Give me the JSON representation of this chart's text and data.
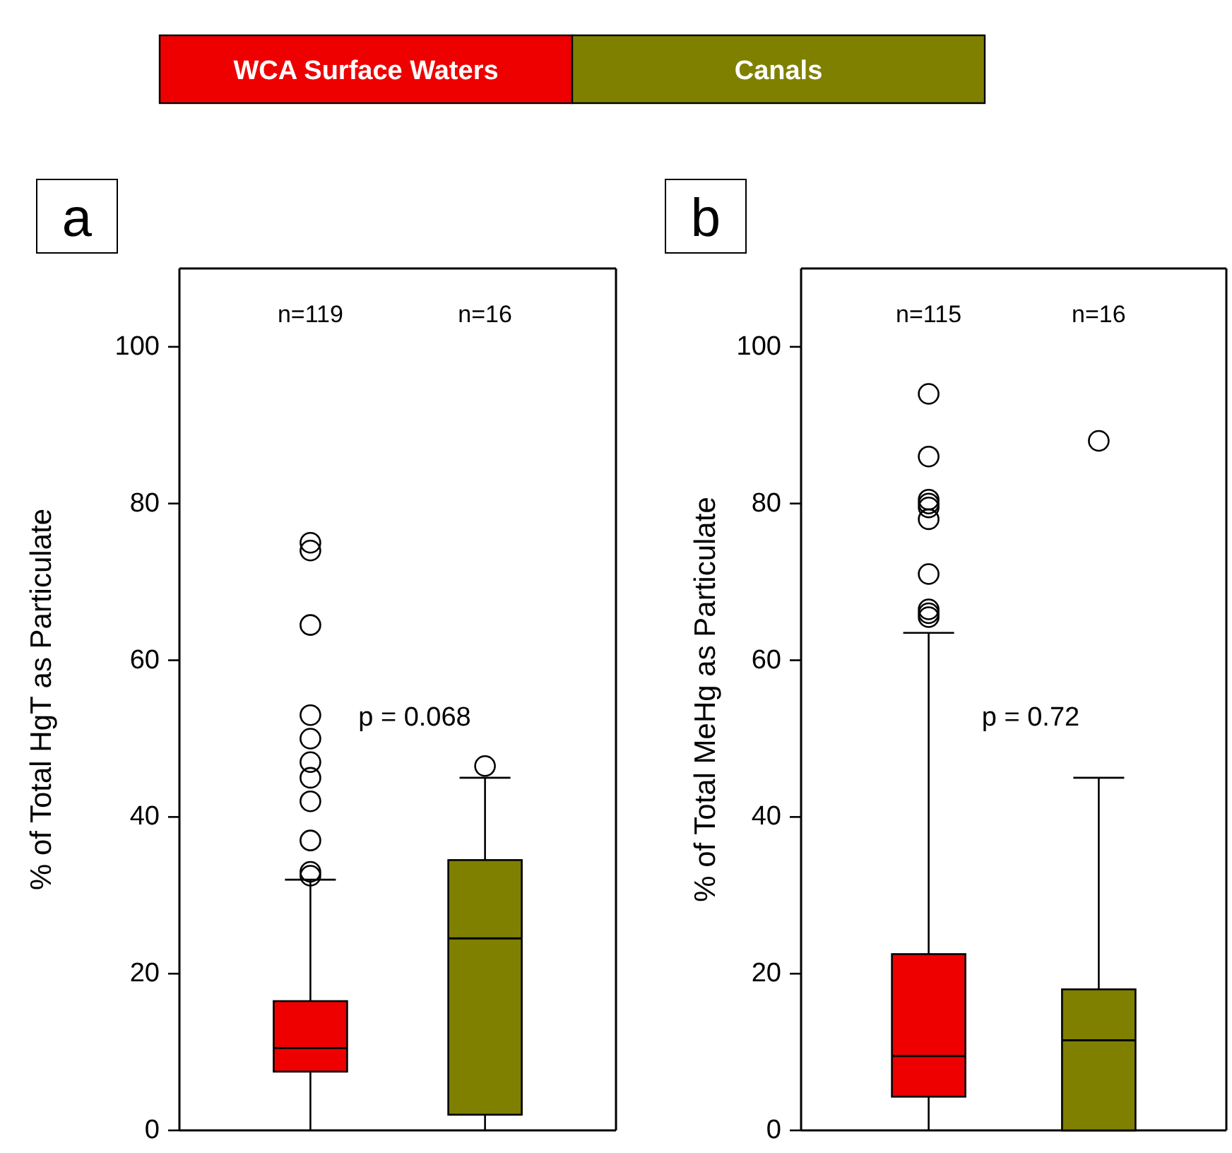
{
  "chart_data": [
    {
      "type": "other",
      "categories": [
        "WCA Surface Waters",
        "Canals"
      ],
      "colors": [
        "#ee0000",
        "#808000"
      ]
    },
    {
      "type": "box",
      "title": "a",
      "ylabel": "% of Total HgT as Particulate",
      "categories": [
        null,
        null
      ],
      "ylim": [
        0,
        110
      ],
      "yticks": [
        0,
        20,
        40,
        60,
        80,
        100
      ],
      "annotations": [
        "n=119",
        "n=16",
        "p = 0.068"
      ],
      "series": [
        {
          "colors": [
            "#ee0000",
            "#808000"
          ],
          "boxes": [
            {
              "low": 0,
              "q1": 7.5,
              "median": 10.5,
              "q3": 16.5,
              "high": 32,
              "outliers": [
                75,
                74,
                64.5,
                53,
                50,
                47,
                45,
                42,
                37,
                33,
                32.5
              ]
            },
            {
              "low": 0,
              "q1": 2,
              "median": 24.5,
              "q3": 34.5,
              "high": 45,
              "outliers": [
                46.5
              ]
            }
          ]
        }
      ]
    },
    {
      "type": "box",
      "title": "b",
      "ylabel": "% of Total MeHg as Particulate",
      "categories": [
        null,
        null
      ],
      "ylim": [
        0,
        110
      ],
      "yticks": [
        0,
        20,
        40,
        60,
        80,
        100
      ],
      "annotations": [
        "n=115",
        "n=16",
        "p = 0.72"
      ],
      "series": [
        {
          "colors": [
            "#ee0000",
            "#808000"
          ],
          "boxes": [
            {
              "low": 0,
              "q1": 4.3,
              "median": 9.5,
              "q3": 22.5,
              "high": 63.5,
              "outliers": [
                94,
                86,
                80.5,
                80,
                79.5,
                78,
                71,
                66.5,
                66,
                65.5
              ]
            },
            {
              "low": 0,
              "q1": 0,
              "median": 11.5,
              "q3": 18,
              "high": 45,
              "outliers": [
                88
              ]
            }
          ]
        }
      ]
    }
  ]
}
